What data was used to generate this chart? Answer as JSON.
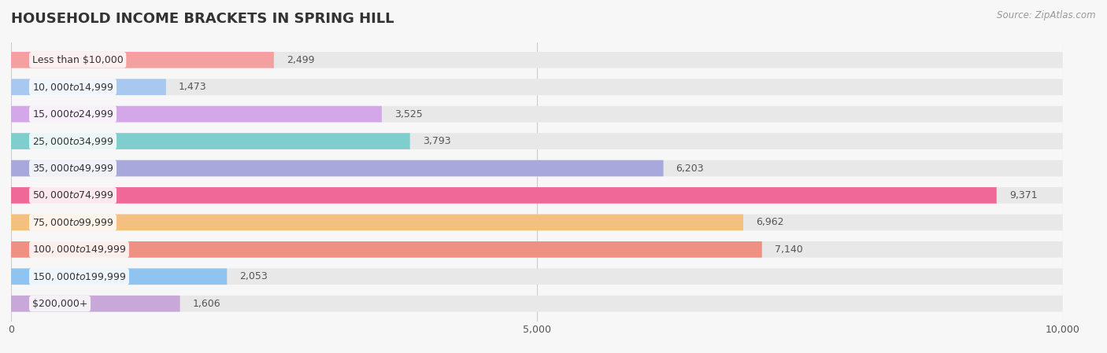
{
  "title": "HOUSEHOLD INCOME BRACKETS IN SPRING HILL",
  "source": "Source: ZipAtlas.com",
  "categories": [
    "Less than $10,000",
    "$10,000 to $14,999",
    "$15,000 to $24,999",
    "$25,000 to $34,999",
    "$35,000 to $49,999",
    "$50,000 to $74,999",
    "$75,000 to $99,999",
    "$100,000 to $149,999",
    "$150,000 to $199,999",
    "$200,000+"
  ],
  "values": [
    2499,
    1473,
    3525,
    3793,
    6203,
    9371,
    6962,
    7140,
    2053,
    1606
  ],
  "bar_colors": [
    "#F4A0A0",
    "#A8C8F0",
    "#D4A8E8",
    "#7ECECE",
    "#A8A8DC",
    "#F06898",
    "#F4C080",
    "#F09080",
    "#90C4F0",
    "#C8A8D8"
  ],
  "value_labels": [
    "2,499",
    "1,473",
    "3,525",
    "3,793",
    "6,203",
    "9,371",
    "6,962",
    "7,140",
    "2,053",
    "1,606"
  ],
  "xlim": [
    0,
    10000
  ],
  "xticks": [
    0,
    5000,
    10000
  ],
  "xtick_labels": [
    "0",
    "5,000",
    "10,000"
  ],
  "bg_color": "#f7f7f7",
  "bar_bg_color": "#e8e8e8",
  "title_fontsize": 13,
  "label_fontsize": 9,
  "value_fontsize": 9,
  "bar_height": 0.6
}
